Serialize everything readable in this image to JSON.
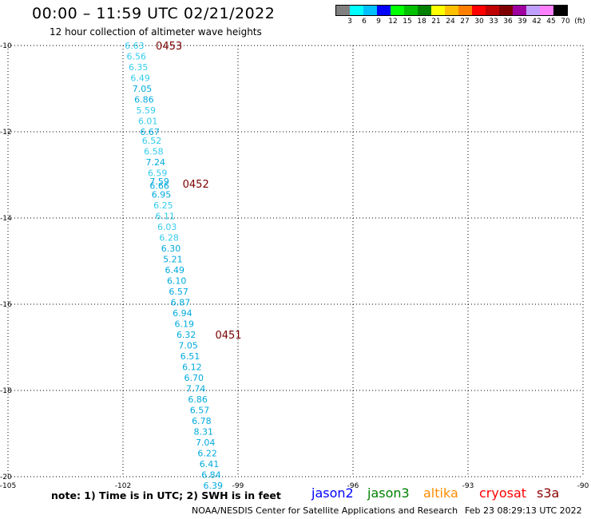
{
  "title": "00:00 – 11:59 UTC 02/21/2022",
  "subtitle": "12 hour collection of altimeter wave heights",
  "legend": {
    "colors": [
      "#808080",
      "#00ffff",
      "#00c0ff",
      "#0000ff",
      "#00ff00",
      "#00c000",
      "#008000",
      "#ffff00",
      "#ffc000",
      "#ff8000",
      "#ff0000",
      "#c00000",
      "#800000",
      "#a000a0",
      "#c0a0ff",
      "#ff80ff",
      "#000000"
    ],
    "ticks": [
      "3",
      "6",
      "9",
      "12",
      "15",
      "18",
      "21",
      "24",
      "27",
      "30",
      "33",
      "36",
      "39",
      "42",
      "45",
      "70",
      "(ft)"
    ]
  },
  "map": {
    "lon_ticks": [
      "-105",
      "-102",
      "-99",
      "-96",
      "-93",
      "-90"
    ],
    "lat_ticks": [
      "-10",
      "-12",
      "-14",
      "-16",
      "-18",
      "-20"
    ]
  },
  "chart_data": {
    "type": "scatter",
    "x_range": [
      -105,
      -90
    ],
    "y_range": [
      -20,
      -10
    ],
    "swh_color": "#00aadd",
    "swh_color_light": "#33ccee",
    "time_color": "#7a0000",
    "swh_values": [
      "6.63",
      "6.56",
      "6.35",
      "6.49",
      "7.05",
      "6.86",
      "5.59",
      "6.01",
      "6.67",
      "6.52",
      "6.58",
      "7.24",
      "6.59",
      "7.59",
      "6.66",
      "6.95",
      "6.25",
      "6.11",
      "6.03",
      "6.28",
      "6.30",
      "5.21",
      "6.49",
      "6.10",
      "6.57",
      "6.87",
      "6.94",
      "6.19",
      "6.32",
      "7.05",
      "6.51",
      "6.12",
      "6.70",
      "7.74",
      "6.86",
      "6.57",
      "6.78",
      "8.31",
      "7.04",
      "6.22",
      "6.41",
      "6.84",
      "6.39"
    ],
    "swh_points": [
      {
        "lon": -101.7,
        "lat": -10.0
      },
      {
        "lon": -101.65,
        "lat": -10.25
      },
      {
        "lon": -101.6,
        "lat": -10.5
      },
      {
        "lon": -101.55,
        "lat": -10.75
      },
      {
        "lon": -101.5,
        "lat": -11.0
      },
      {
        "lon": -101.45,
        "lat": -11.25
      },
      {
        "lon": -101.4,
        "lat": -11.5
      },
      {
        "lon": -101.35,
        "lat": -11.75
      },
      {
        "lon": -101.3,
        "lat": -12.0
      },
      {
        "lon": -101.25,
        "lat": -12.2
      },
      {
        "lon": -101.2,
        "lat": -12.45
      },
      {
        "lon": -101.15,
        "lat": -12.7
      },
      {
        "lon": -101.1,
        "lat": -12.95
      },
      {
        "lon": -101.05,
        "lat": -13.15
      },
      {
        "lon": -101.05,
        "lat": -13.25
      },
      {
        "lon": -101.0,
        "lat": -13.45
      },
      {
        "lon": -100.95,
        "lat": -13.7
      },
      {
        "lon": -100.9,
        "lat": -13.95
      },
      {
        "lon": -100.85,
        "lat": -14.2
      },
      {
        "lon": -100.8,
        "lat": -14.45
      },
      {
        "lon": -100.75,
        "lat": -14.7
      },
      {
        "lon": -100.7,
        "lat": -14.95
      },
      {
        "lon": -100.65,
        "lat": -15.2
      },
      {
        "lon": -100.6,
        "lat": -15.45
      },
      {
        "lon": -100.55,
        "lat": -15.7
      },
      {
        "lon": -100.5,
        "lat": -15.95
      },
      {
        "lon": -100.45,
        "lat": -16.2
      },
      {
        "lon": -100.4,
        "lat": -16.45
      },
      {
        "lon": -100.35,
        "lat": -16.7
      },
      {
        "lon": -100.3,
        "lat": -16.95
      },
      {
        "lon": -100.25,
        "lat": -17.2
      },
      {
        "lon": -100.2,
        "lat": -17.45
      },
      {
        "lon": -100.15,
        "lat": -17.7
      },
      {
        "lon": -100.1,
        "lat": -17.95
      },
      {
        "lon": -100.05,
        "lat": -18.2
      },
      {
        "lon": -100.0,
        "lat": -18.45
      },
      {
        "lon": -99.95,
        "lat": -18.7
      },
      {
        "lon": -99.9,
        "lat": -18.95
      },
      {
        "lon": -99.85,
        "lat": -19.2
      },
      {
        "lon": -99.8,
        "lat": -19.45
      },
      {
        "lon": -99.75,
        "lat": -19.7
      },
      {
        "lon": -99.7,
        "lat": -19.95
      },
      {
        "lon": -99.65,
        "lat": -20.2
      }
    ],
    "time_labels": [
      {
        "text": "0453",
        "lon": -100.8,
        "lat": -10.0
      },
      {
        "text": "0452",
        "lon": -100.1,
        "lat": -13.2
      },
      {
        "text": "0451",
        "lon": -99.25,
        "lat": -16.7
      }
    ]
  },
  "note": "note:  1) Time is in UTC;  2) SWH is in feet",
  "satellites": [
    {
      "name": "jason2",
      "color": "#0000ff"
    },
    {
      "name": "jason3",
      "color": "#008000"
    },
    {
      "name": "altika",
      "color": "#ff8c00"
    },
    {
      "name": "cryosat",
      "color": "#ff0000"
    },
    {
      "name": "s3a",
      "color": "#8b0000"
    }
  ],
  "footer": "NOAA/NESDIS Center for Satellite Applications and Research",
  "timestamp": "Feb 23 08:29:13 UTC 2022"
}
